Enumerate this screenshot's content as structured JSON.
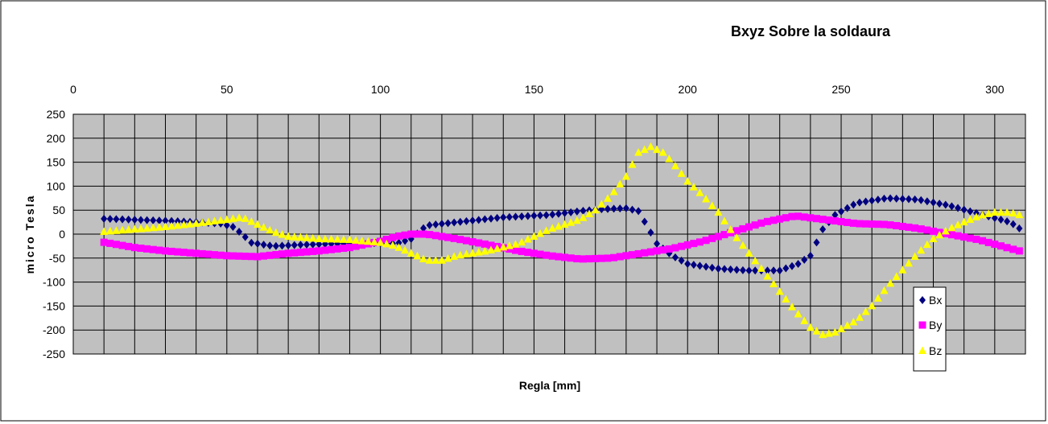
{
  "chart_data": {
    "type": "scatter",
    "title": "Bxyz Sobre la soldaura",
    "xlabel": "Regla [mm]",
    "ylabel": "micro Tesla",
    "xlim": [
      0,
      310
    ],
    "ylim": [
      -250,
      250
    ],
    "x_ticks": [
      0,
      50,
      100,
      150,
      200,
      250,
      300
    ],
    "y_ticks": [
      250,
      200,
      150,
      100,
      50,
      0,
      -50,
      -100,
      -150,
      -200,
      -250
    ],
    "x_step": 2,
    "grid": true,
    "plot_background": "#c0c0c0",
    "legend_position": "right-bottom",
    "series": [
      {
        "name": "Bx",
        "color": "#000080",
        "marker": "diamond",
        "anchors": [
          [
            10,
            32
          ],
          [
            20,
            30
          ],
          [
            30,
            28
          ],
          [
            40,
            25
          ],
          [
            48,
            22
          ],
          [
            52,
            15
          ],
          [
            55,
            0
          ],
          [
            58,
            -18
          ],
          [
            65,
            -25
          ],
          [
            75,
            -22
          ],
          [
            85,
            -20
          ],
          [
            95,
            -18
          ],
          [
            105,
            -20
          ],
          [
            110,
            -10
          ],
          [
            115,
            18
          ],
          [
            125,
            25
          ],
          [
            140,
            35
          ],
          [
            155,
            40
          ],
          [
            165,
            48
          ],
          [
            172,
            52
          ],
          [
            180,
            54
          ],
          [
            184,
            48
          ],
          [
            187,
            15
          ],
          [
            190,
            -20
          ],
          [
            195,
            -45
          ],
          [
            200,
            -62
          ],
          [
            210,
            -72
          ],
          [
            220,
            -76
          ],
          [
            230,
            -76
          ],
          [
            236,
            -62
          ],
          [
            240,
            -45
          ],
          [
            244,
            10
          ],
          [
            248,
            40
          ],
          [
            255,
            65
          ],
          [
            265,
            75
          ],
          [
            275,
            72
          ],
          [
            285,
            60
          ],
          [
            295,
            42
          ],
          [
            305,
            25
          ],
          [
            308,
            12
          ]
        ]
      },
      {
        "name": "By",
        "color": "#ff00ff",
        "marker": "square",
        "anchors": [
          [
            10,
            -17
          ],
          [
            20,
            -28
          ],
          [
            30,
            -35
          ],
          [
            40,
            -40
          ],
          [
            50,
            -45
          ],
          [
            60,
            -47
          ],
          [
            70,
            -40
          ],
          [
            80,
            -35
          ],
          [
            90,
            -28
          ],
          [
            100,
            -15
          ],
          [
            105,
            -5
          ],
          [
            110,
            0
          ],
          [
            115,
            0
          ],
          [
            125,
            -10
          ],
          [
            135,
            -22
          ],
          [
            145,
            -35
          ],
          [
            155,
            -45
          ],
          [
            165,
            -52
          ],
          [
            175,
            -50
          ],
          [
            185,
            -40
          ],
          [
            195,
            -30
          ],
          [
            205,
            -15
          ],
          [
            215,
            5
          ],
          [
            225,
            25
          ],
          [
            235,
            38
          ],
          [
            245,
            30
          ],
          [
            255,
            22
          ],
          [
            265,
            20
          ],
          [
            275,
            12
          ],
          [
            285,
            0
          ],
          [
            295,
            -12
          ],
          [
            305,
            -30
          ],
          [
            308,
            -35
          ]
        ]
      },
      {
        "name": "Bz",
        "color": "#ffff00",
        "marker": "triangle",
        "anchors": [
          [
            10,
            5
          ],
          [
            20,
            10
          ],
          [
            30,
            15
          ],
          [
            40,
            22
          ],
          [
            50,
            30
          ],
          [
            55,
            35
          ],
          [
            60,
            20
          ],
          [
            65,
            5
          ],
          [
            70,
            -5
          ],
          [
            80,
            -10
          ],
          [
            90,
            -12
          ],
          [
            100,
            -18
          ],
          [
            105,
            -25
          ],
          [
            110,
            -40
          ],
          [
            115,
            -55
          ],
          [
            120,
            -55
          ],
          [
            125,
            -45
          ],
          [
            135,
            -35
          ],
          [
            145,
            -20
          ],
          [
            150,
            -5
          ],
          [
            155,
            10
          ],
          [
            165,
            30
          ],
          [
            170,
            50
          ],
          [
            175,
            80
          ],
          [
            180,
            120
          ],
          [
            184,
            170
          ],
          [
            188,
            182
          ],
          [
            192,
            170
          ],
          [
            195,
            150
          ],
          [
            200,
            110
          ],
          [
            205,
            80
          ],
          [
            210,
            45
          ],
          [
            215,
            0
          ],
          [
            220,
            -40
          ],
          [
            225,
            -80
          ],
          [
            230,
            -120
          ],
          [
            235,
            -160
          ],
          [
            240,
            -195
          ],
          [
            244,
            -210
          ],
          [
            248,
            -205
          ],
          [
            255,
            -180
          ],
          [
            260,
            -150
          ],
          [
            265,
            -110
          ],
          [
            270,
            -75
          ],
          [
            275,
            -40
          ],
          [
            280,
            -10
          ],
          [
            285,
            10
          ],
          [
            290,
            25
          ],
          [
            295,
            38
          ],
          [
            300,
            45
          ],
          [
            305,
            45
          ],
          [
            308,
            40
          ]
        ]
      }
    ]
  }
}
